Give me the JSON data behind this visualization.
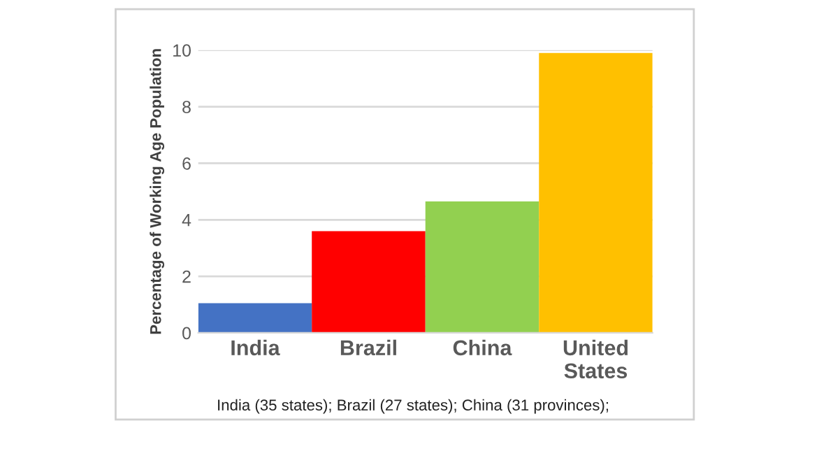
{
  "chart_data": {
    "type": "bar",
    "ylabel": "Percentage of Working Age Population",
    "categories": [
      "India",
      "Brazil",
      "China",
      "United\nStates"
    ],
    "values": [
      1.05,
      3.6,
      4.65,
      9.9
    ],
    "colors": [
      "#4472c4",
      "#ff0000",
      "#92d050",
      "#ffc000"
    ],
    "ylim": [
      0,
      10
    ],
    "yticks": [
      0,
      2,
      4,
      6,
      8,
      10
    ],
    "grid": "y",
    "annotations": [
      "India (35 states); Brazil (27 states); China (31 provinces);"
    ]
  }
}
